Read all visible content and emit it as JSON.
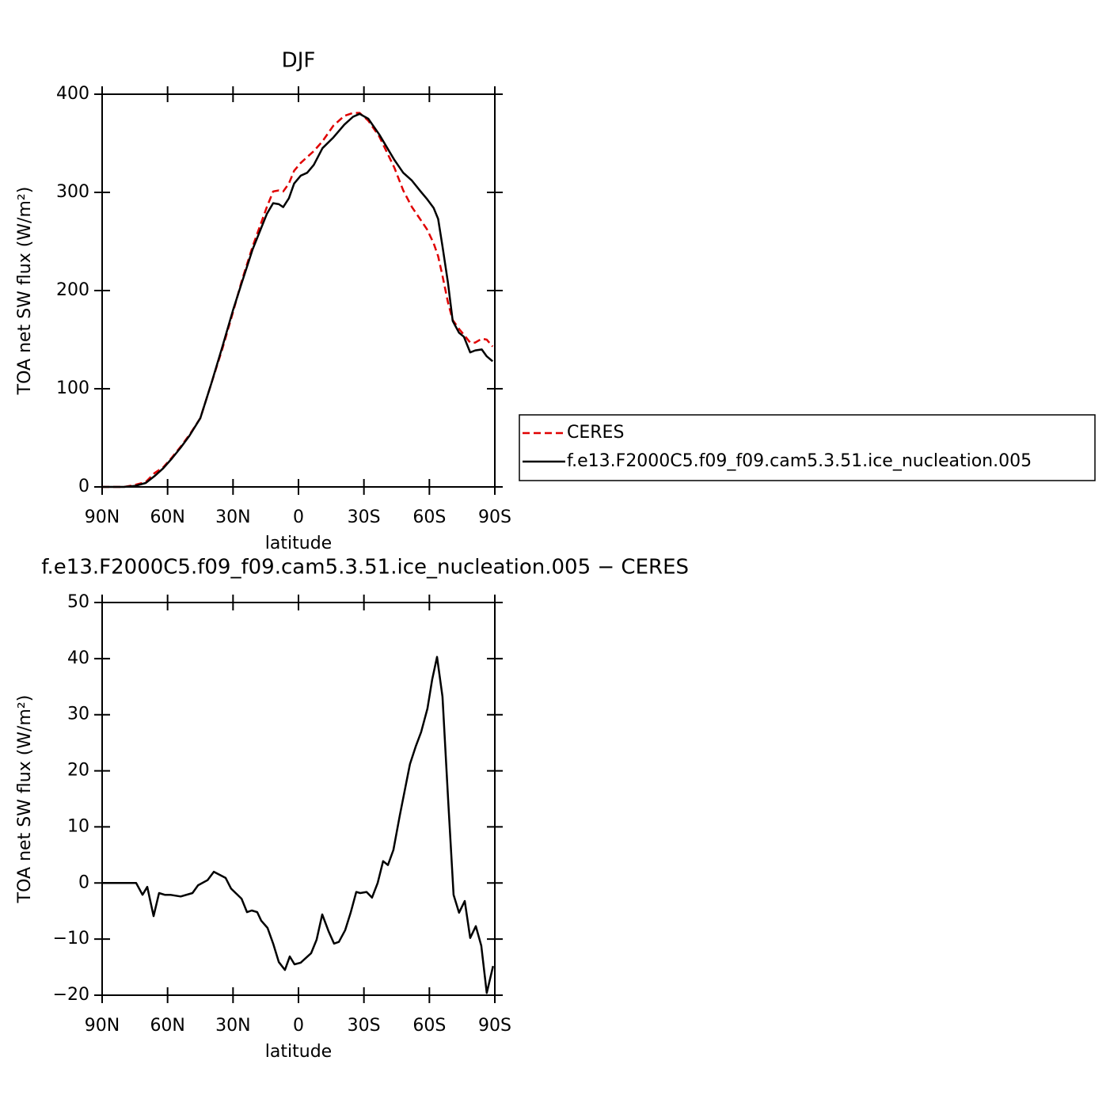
{
  "chart_data": [
    {
      "type": "line",
      "title": "DJF",
      "xlabel": "latitude",
      "ylabel": "TOA net SW flux (W/m²)",
      "x": [
        90,
        85,
        80,
        75,
        70,
        66,
        62,
        58,
        54,
        50,
        45,
        40,
        35,
        30,
        26,
        21,
        14.5,
        11.6,
        9,
        7,
        4.4,
        2,
        -1,
        -4,
        -7,
        -11,
        -16,
        -21,
        -25,
        -28,
        -32,
        -37,
        -44,
        -48,
        -52,
        -56,
        -59,
        -62,
        -64,
        -66,
        -68.5,
        -70.7,
        -73.6,
        -75.8,
        -78.7,
        -81,
        -84,
        -86.3,
        -89
      ],
      "xlim": [
        90,
        -90
      ],
      "xticks": [
        {
          "value": 90,
          "label": "90N"
        },
        {
          "value": 60,
          "label": "60N"
        },
        {
          "value": 30,
          "label": "30N"
        },
        0,
        {
          "value": -30,
          "label": "30S"
        },
        {
          "value": -60,
          "label": "60S"
        },
        {
          "value": -90,
          "label": "90S"
        }
      ],
      "ylim": [
        0,
        400
      ],
      "yticks": [
        0,
        100,
        200,
        300,
        400
      ],
      "legend": "right",
      "series": [
        {
          "name": "CERES",
          "color": "#e00000",
          "linestyle": "dashed",
          "values": [
            0,
            0,
            0,
            2,
            5,
            14,
            20,
            30,
            41,
            53,
            70,
            105,
            140,
            178,
            210,
            245,
            285,
            301,
            302,
            301,
            309,
            322,
            330,
            336,
            342,
            352,
            368,
            378,
            381,
            381,
            373,
            357,
            325,
            302,
            285,
            272,
            262,
            248,
            235,
            215,
            188,
            170,
            161,
            155,
            147,
            147,
            151,
            150,
            143
          ]
        },
        {
          "name": "f.e13.F2000C5.f09_f09.cam5.3.51.ice_nucleation.005",
          "color": "#000000",
          "linestyle": "solid",
          "values": [
            0,
            0,
            0,
            1,
            4,
            11,
            19,
            29,
            40,
            52,
            70,
            105,
            142,
            180,
            208,
            242,
            278,
            289,
            288,
            285,
            294,
            309,
            317,
            320,
            328,
            345,
            356,
            369,
            377,
            380,
            375,
            359,
            333,
            320,
            312,
            301,
            293,
            284,
            273,
            245,
            208,
            169,
            157,
            153,
            137,
            139,
            140,
            133,
            128
          ]
        }
      ]
    },
    {
      "type": "line",
      "title": "f.e13.F2000C5.f09_f09.cam5.3.51.ice_nucleation.005 − CERES",
      "xlabel": "latitude",
      "ylabel": "TOA net SW flux (W/m²)",
      "x": [
        90,
        74.4,
        71.5,
        69.3,
        66.4,
        63.9,
        61.3,
        58.8,
        54,
        48.6,
        46,
        41.7,
        38.8,
        33.4,
        30.9,
        26.1,
        23.6,
        21.4,
        18.9,
        17.1,
        14.2,
        11.6,
        9,
        6.2,
        4,
        1.8,
        -1,
        -5.8,
        -8.3,
        -10.9,
        -13.8,
        -16.3,
        -18.5,
        -21.4,
        -23.9,
        -26.5,
        -28.3,
        -31.2,
        -33.7,
        -36.3,
        -38.8,
        -41,
        -43.5,
        -46.4,
        -51.1,
        -53.7,
        -56.2,
        -59.1,
        -61.3,
        -63.5,
        -66,
        -68.6,
        -71.1,
        -73.6,
        -76.2,
        -78.7,
        -81.3,
        -83.8,
        -86.3,
        -89.2
      ],
      "xlim": [
        90,
        -90
      ],
      "xticks": [
        {
          "value": 90,
          "label": "90N"
        },
        {
          "value": 60,
          "label": "60N"
        },
        {
          "value": 30,
          "label": "30N"
        },
        0,
        {
          "value": -30,
          "label": "30S"
        },
        {
          "value": -60,
          "label": "60S"
        },
        {
          "value": -90,
          "label": "90S"
        }
      ],
      "ylim": [
        -20,
        50
      ],
      "yticks": [
        {
          "value": -20,
          "label": "−20"
        },
        {
          "value": -10,
          "label": "−10"
        },
        0,
        10,
        20,
        30,
        40,
        50
      ],
      "series": [
        {
          "color": "#000000",
          "linestyle": "solid",
          "values": [
            0,
            0,
            -2.1,
            -0.7,
            -5.9,
            -1.8,
            -2.1,
            -2.1,
            -2.4,
            -1.8,
            -0.4,
            0.5,
            2.0,
            0.9,
            -1.0,
            -2.8,
            -5.2,
            -4.9,
            -5.2,
            -6.7,
            -8.0,
            -10.8,
            -14.1,
            -15.5,
            -13.1,
            -14.5,
            -14.2,
            -12.5,
            -10.1,
            -5.6,
            -8.6,
            -10.8,
            -10.5,
            -8.4,
            -5.3,
            -1.6,
            -1.8,
            -1.6,
            -2.6,
            0,
            3.9,
            3.2,
            5.9,
            12.0,
            21.2,
            24.3,
            26.9,
            31.1,
            36.3,
            40.3,
            33.2,
            14.9,
            -2.1,
            -5.3,
            -3.2,
            -9.8,
            -7.7,
            -11.2,
            -19.6,
            -14.8
          ]
        }
      ]
    }
  ]
}
